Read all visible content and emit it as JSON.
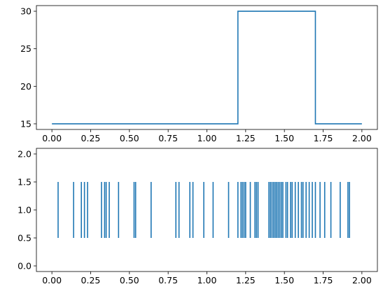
{
  "colors": {
    "series": "#1f77b4"
  },
  "chart_data": [
    {
      "type": "line",
      "drawstyle": "steps",
      "title": "",
      "xlabel": "",
      "ylabel": "",
      "xlim": [
        -0.1,
        2.1
      ],
      "ylim": [
        14.25,
        30.75
      ],
      "grid": false,
      "xticks": [
        "0.00",
        "0.25",
        "0.50",
        "0.75",
        "1.00",
        "1.25",
        "1.50",
        "1.75",
        "2.00"
      ],
      "yticks": [
        "15",
        "20",
        "25",
        "30"
      ],
      "series": [
        {
          "x": [
            0.0,
            1.2,
            1.2,
            1.7,
            1.7,
            2.0
          ],
          "y": [
            15,
            15,
            30,
            30,
            15,
            15
          ]
        }
      ]
    },
    {
      "type": "eventplot",
      "title": "",
      "xlabel": "",
      "ylabel": "",
      "xlim": [
        -0.1,
        2.1
      ],
      "ylim": [
        -0.1,
        2.1
      ],
      "grid": false,
      "line_offset": 1.0,
      "line_length": 1.0,
      "xticks": [
        "0.00",
        "0.25",
        "0.50",
        "0.75",
        "1.00",
        "1.25",
        "1.50",
        "1.75",
        "2.00"
      ],
      "yticks": [
        "0.0",
        "0.5",
        "1.0",
        "1.5",
        "2.0"
      ],
      "events": [
        0.04,
        0.14,
        0.19,
        0.21,
        0.23,
        0.32,
        0.34,
        0.35,
        0.37,
        0.43,
        0.53,
        0.54,
        0.64,
        0.8,
        0.82,
        0.89,
        0.91,
        0.98,
        1.04,
        1.14,
        1.2,
        1.22,
        1.23,
        1.24,
        1.25,
        1.28,
        1.31,
        1.32,
        1.33,
        1.4,
        1.41,
        1.42,
        1.43,
        1.44,
        1.45,
        1.46,
        1.47,
        1.48,
        1.49,
        1.51,
        1.52,
        1.54,
        1.55,
        1.57,
        1.59,
        1.61,
        1.62,
        1.64,
        1.66,
        1.68,
        1.7,
        1.73,
        1.76,
        1.8,
        1.86,
        1.91,
        1.92
      ]
    }
  ]
}
